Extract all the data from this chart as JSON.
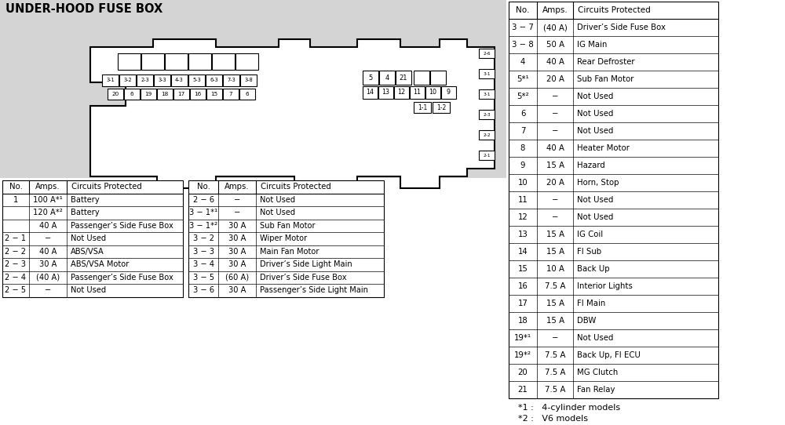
{
  "title": "UNDER-HOOD FUSE BOX",
  "table1_headers": [
    "No.",
    "Amps.",
    "Circuits Protected"
  ],
  "table1_rows": [
    [
      "1",
      "100 A*¹",
      "Battery"
    ],
    [
      "",
      "120 A*²",
      "Battery"
    ],
    [
      "",
      "40 A",
      "Passenger’s Side Fuse Box"
    ],
    [
      "2 − 1",
      "−",
      "Not Used"
    ],
    [
      "2 − 2",
      "40 A",
      "ABS/VSA"
    ],
    [
      "2 − 3",
      "30 A",
      "ABS/VSA Motor"
    ],
    [
      "2 − 4",
      "(40 A)",
      "Passenger’s Side Fuse Box"
    ],
    [
      "2 − 5",
      "−",
      "Not Used"
    ]
  ],
  "table2_headers": [
    "No.",
    "Amps.",
    "Circuits Protected"
  ],
  "table2_rows": [
    [
      "2 − 6",
      "−",
      "Not Used"
    ],
    [
      "3 − 1*¹",
      "−",
      "Not Used"
    ],
    [
      "3 − 1*²",
      "30 A",
      "Sub Fan Motor"
    ],
    [
      "3 − 2",
      "30 A",
      "Wiper Motor"
    ],
    [
      "3 − 3",
      "30 A",
      "Main Fan Motor"
    ],
    [
      "3 − 4",
      "30 A",
      "Driver’s Side Light Main"
    ],
    [
      "3 − 5",
      "(60 A)",
      "Driver’s Side Fuse Box"
    ],
    [
      "3 − 6",
      "30 A",
      "Passenger’s Side Light Main"
    ]
  ],
  "table3_headers": [
    "No.",
    "Amps.",
    "Circuits Protected"
  ],
  "table3_rows": [
    [
      "3 − 7",
      "(40 A)",
      "Driver’s Side Fuse Box"
    ],
    [
      "3 − 8",
      "50 A",
      "IG Main"
    ],
    [
      "4",
      "40 A",
      "Rear Defroster"
    ],
    [
      "5*¹",
      "20 A",
      "Sub Fan Motor"
    ],
    [
      "5*²",
      "−",
      "Not Used"
    ],
    [
      "6",
      "−",
      "Not Used"
    ],
    [
      "7",
      "−",
      "Not Used"
    ],
    [
      "8",
      "40 A",
      "Heater Motor"
    ],
    [
      "9",
      "15 A",
      "Hazard"
    ],
    [
      "10",
      "20 A",
      "Horn, Stop"
    ],
    [
      "11",
      "−",
      "Not Used"
    ],
    [
      "12",
      "−",
      "Not Used"
    ],
    [
      "13",
      "15 A",
      "IG Coil"
    ],
    [
      "14",
      "15 A",
      "FI Sub"
    ],
    [
      "15",
      "10 A",
      "Back Up"
    ],
    [
      "16",
      "7.5 A",
      "Interior Lights"
    ],
    [
      "17",
      "15 A",
      "FI Main"
    ],
    [
      "18",
      "15 A",
      "DBW"
    ],
    [
      "19*¹",
      "−",
      "Not Used"
    ],
    [
      "19*²",
      "7.5 A",
      "Back Up, FI ECU"
    ],
    [
      "20",
      "7.5 A",
      "MG Clutch"
    ],
    [
      "21",
      "7.5 A",
      "Fan Relay"
    ]
  ],
  "footnotes": [
    "*1 :   4-cylinder models",
    "*2 :   V6 models"
  ],
  "gray_bg": "#d4d4d4",
  "white": "#ffffff",
  "black": "#000000"
}
